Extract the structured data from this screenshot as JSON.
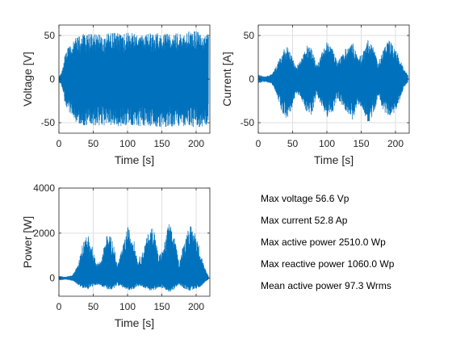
{
  "chart_data": [
    {
      "type": "line",
      "xlabel": "Time [s]",
      "ylabel": "Voltage [V]",
      "xlim": [
        0,
        220
      ],
      "ylim": [
        -62,
        62
      ],
      "xticks": [
        0,
        50,
        100,
        150,
        200
      ],
      "yticks": [
        -50,
        0,
        50
      ],
      "grid": true,
      "color": "#0072BD",
      "envelope": {
        "t": [
          0,
          5,
          8,
          12,
          18,
          25,
          35,
          45,
          55,
          65,
          80,
          95,
          110,
          120,
          130,
          145,
          160,
          175,
          190,
          200,
          210,
          215,
          218
        ],
        "max": [
          3,
          10,
          25,
          35,
          40,
          48,
          52,
          53,
          53,
          52,
          53,
          53,
          54,
          53,
          53,
          53,
          54,
          53,
          55,
          55,
          56.6,
          55,
          50
        ],
        "min": [
          -3,
          -10,
          -25,
          -35,
          -42,
          -50,
          -53,
          -54,
          -54,
          -53,
          -54,
          -54,
          -55,
          -54,
          -54,
          -55,
          -55,
          -54,
          -55,
          -55,
          -56,
          -55,
          -50
        ]
      }
    },
    {
      "type": "line",
      "xlabel": "Time [s]",
      "ylabel": "Current [A]",
      "xlim": [
        0,
        220
      ],
      "ylim": [
        -62,
        62
      ],
      "xticks": [
        0,
        50,
        100,
        150,
        200
      ],
      "yticks": [
        -50,
        0,
        50
      ],
      "grid": true,
      "color": "#0072BD",
      "envelope": {
        "t": [
          0,
          10,
          20,
          28,
          35,
          42,
          48,
          55,
          62,
          70,
          78,
          85,
          92,
          100,
          108,
          115,
          122,
          130,
          138,
          145,
          152,
          160,
          168,
          175,
          182,
          190,
          198,
          205,
          212,
          218
        ],
        "max": [
          5,
          3,
          6,
          18,
          32,
          38,
          30,
          14,
          22,
          40,
          35,
          16,
          30,
          43,
          35,
          20,
          28,
          38,
          42,
          24,
          30,
          45,
          36,
          18,
          34,
          45,
          38,
          28,
          12,
          5
        ],
        "min": [
          -5,
          -3,
          -6,
          -20,
          -40,
          -46,
          -36,
          -16,
          -22,
          -38,
          -42,
          -18,
          -30,
          -45,
          -40,
          -22,
          -30,
          -40,
          -48,
          -28,
          -34,
          -52.8,
          -40,
          -20,
          -36,
          -45,
          -40,
          -28,
          -10,
          -4
        ]
      }
    },
    {
      "type": "line",
      "xlabel": "Time [s]",
      "ylabel": "Power [W]",
      "xlim": [
        0,
        220
      ],
      "ylim": [
        -800,
        4000
      ],
      "xticks": [
        0,
        50,
        100,
        150,
        200
      ],
      "yticks": [
        0,
        2000,
        4000
      ],
      "grid": true,
      "color": "#0072BD",
      "envelope": {
        "t": [
          0,
          10,
          20,
          28,
          35,
          42,
          48,
          55,
          62,
          70,
          78,
          85,
          92,
          100,
          108,
          115,
          122,
          130,
          138,
          145,
          152,
          160,
          168,
          175,
          182,
          190,
          198,
          205,
          212,
          218
        ],
        "max": [
          100,
          60,
          150,
          600,
          1600,
          2000,
          1500,
          600,
          900,
          2000,
          1800,
          600,
          1300,
          2300,
          1900,
          800,
          1200,
          2000,
          2400,
          1000,
          1300,
          2510,
          1900,
          700,
          1600,
          2400,
          2100,
          1400,
          500,
          100
        ],
        "min": [
          -100,
          -60,
          -120,
          -300,
          -450,
          -500,
          -400,
          -300,
          -350,
          -500,
          -520,
          -300,
          -400,
          -550,
          -500,
          -350,
          -400,
          -520,
          -600,
          -400,
          -450,
          -650,
          -500,
          -300,
          -450,
          -560,
          -500,
          -420,
          -200,
          -60
        ]
      }
    }
  ],
  "stats": [
    "Max voltage 56.6 Vp",
    "Max current 52.8 Ap",
    "Max active power 2510.0 Wp",
    "Max reactive power 1060.0 Wp",
    "Mean active power 97.3 Wrms"
  ]
}
